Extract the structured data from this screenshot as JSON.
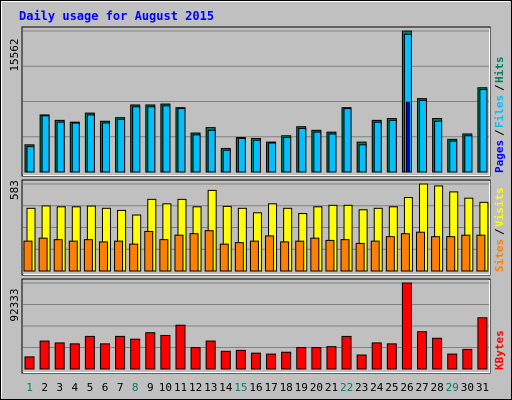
{
  "chart_data": [
    {
      "type": "bar",
      "title": "Daily usage for August 2015",
      "ylabel_parts": [
        "Pages",
        "Files",
        "Hits"
      ],
      "ymax_label": "15562",
      "categories": [
        "1",
        "2",
        "3",
        "4",
        "5",
        "6",
        "7",
        "8",
        "9",
        "10",
        "11",
        "12",
        "13",
        "14",
        "15",
        "16",
        "17",
        "18",
        "19",
        "20",
        "21",
        "22",
        "23",
        "24",
        "25",
        "26",
        "27",
        "28",
        "29",
        "30",
        "31"
      ],
      "series": [
        {
          "name": "Hits",
          "values": [
            3000,
            6300,
            5700,
            5500,
            6500,
            5600,
            6000,
            7400,
            7400,
            7500,
            7100,
            4300,
            4900,
            2600,
            3800,
            3700,
            3300,
            4000,
            5000,
            4600,
            4400,
            7100,
            3300,
            5700,
            5900,
            15562,
            8100,
            5900,
            3600,
            4200,
            9300
          ]
        },
        {
          "name": "Files",
          "values": [
            2800,
            6200,
            5500,
            5400,
            6300,
            5400,
            5800,
            7200,
            7200,
            7300,
            7000,
            4100,
            4600,
            2400,
            3700,
            3500,
            3200,
            3800,
            4800,
            4400,
            4200,
            7000,
            3000,
            5500,
            5700,
            15200,
            7900,
            5600,
            3400,
            4000,
            9100
          ]
        },
        {
          "name": "Pages",
          "values": [
            0,
            0,
            0,
            0,
            0,
            0,
            0,
            0,
            0,
            0,
            0,
            0,
            0,
            0,
            0,
            0,
            0,
            0,
            0,
            0,
            0,
            0,
            0,
            0,
            0,
            7700,
            0,
            0,
            0,
            0,
            0
          ]
        }
      ],
      "colors": {
        "Hits": "#00805c",
        "Files": "#00c0ff",
        "Pages": "#0000ff"
      }
    },
    {
      "type": "bar",
      "ylabel_parts": [
        "Sites",
        "Visits"
      ],
      "ymax_label": "583",
      "categories": [
        "1",
        "2",
        "3",
        "4",
        "5",
        "6",
        "7",
        "8",
        "9",
        "10",
        "11",
        "12",
        "13",
        "14",
        "15",
        "16",
        "17",
        "18",
        "19",
        "20",
        "21",
        "22",
        "23",
        "24",
        "25",
        "26",
        "27",
        "28",
        "29",
        "30",
        "31"
      ],
      "series": [
        {
          "name": "Visits",
          "values": [
            420,
            436,
            430,
            430,
            435,
            420,
            406,
            375,
            480,
            450,
            480,
            430,
            540,
            433,
            420,
            390,
            450,
            420,
            385,
            430,
            440,
            440,
            410,
            420,
            430,
            492,
            583,
            570,
            530,
            488,
            460
          ]
        },
        {
          "name": "Sites",
          "values": [
            200,
            220,
            210,
            200,
            210,
            195,
            200,
            180,
            265,
            210,
            240,
            250,
            270,
            180,
            190,
            200,
            235,
            195,
            200,
            220,
            205,
            210,
            185,
            200,
            230,
            250,
            260,
            230,
            230,
            240,
            240
          ]
        }
      ],
      "colors": {
        "Visits": "#ffff00",
        "Sites": "#ff8000"
      }
    },
    {
      "type": "bar",
      "ylabel_parts": [
        "KBytes"
      ],
      "ymax_label": "92333",
      "categories": [
        "1",
        "2",
        "3",
        "4",
        "5",
        "6",
        "7",
        "8",
        "9",
        "10",
        "11",
        "12",
        "13",
        "14",
        "15",
        "16",
        "17",
        "18",
        "19",
        "20",
        "21",
        "22",
        "23",
        "24",
        "25",
        "26",
        "27",
        "28",
        "29",
        "30",
        "31"
      ],
      "series": [
        {
          "name": "KBytes",
          "values": [
            13000,
            30000,
            28000,
            27000,
            35000,
            27000,
            35000,
            32000,
            39000,
            36000,
            47000,
            23000,
            30000,
            19000,
            20000,
            17000,
            16000,
            18000,
            23000,
            23000,
            24000,
            35000,
            15000,
            28000,
            27000,
            92333,
            40000,
            33000,
            16000,
            21000,
            55000
          ]
        }
      ],
      "colors": {
        "KBytes": "#ff0000"
      }
    }
  ],
  "weekend_days": [
    1,
    8,
    15,
    22,
    29
  ],
  "weekday_color": "#000000",
  "weekend_color": "#00805c",
  "title_color": "#0000ff"
}
